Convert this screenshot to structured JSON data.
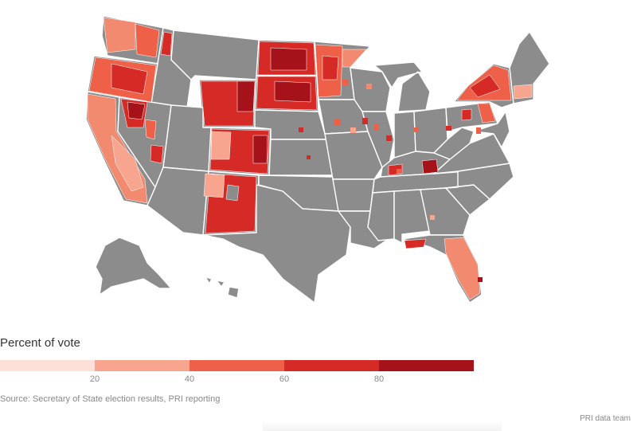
{
  "legend": {
    "title": "Percent of vote",
    "ticks": [
      "20",
      "40",
      "60",
      "80"
    ],
    "bins": [
      {
        "from": 0,
        "to": 20,
        "color": "#fde0d8"
      },
      {
        "from": 20,
        "to": 40,
        "color": "#f7a58e"
      },
      {
        "from": 40,
        "to": 60,
        "color": "#ee6048"
      },
      {
        "from": 60,
        "to": 80,
        "color": "#d62a27"
      },
      {
        "from": 80,
        "to": 100,
        "color": "#a51219"
      }
    ]
  },
  "map": {
    "no_data_color": "#8c8c8c",
    "border_color": "#ffffff"
  },
  "source": "Source: Secretary of State election results, PRI reporting",
  "credit": "PRI data team"
}
